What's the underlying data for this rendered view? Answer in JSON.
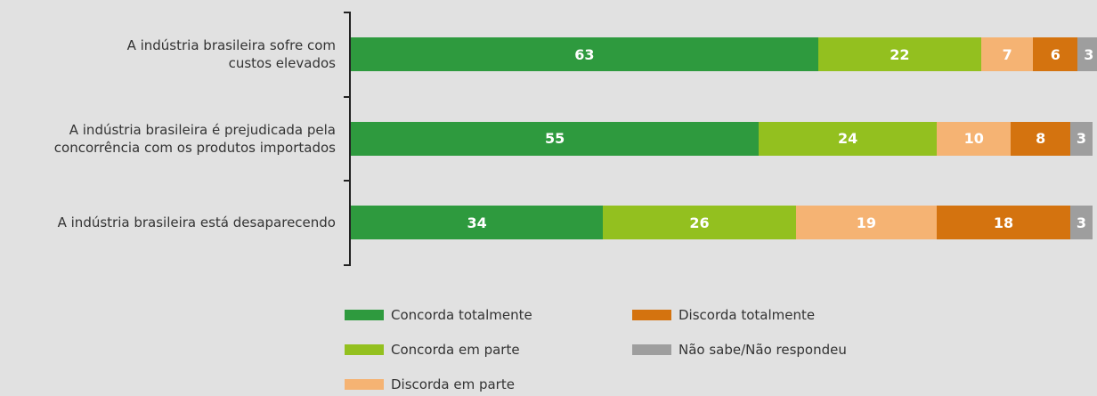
{
  "chart_data": {
    "type": "stacked-barh",
    "categories": [
      "A indústria brasileira sofre com\ncustos elevados",
      "A indústria brasileira é prejudicada pela\nconcorrência com os produtos importados",
      "A indústria brasileira está desaparecendo"
    ],
    "xlim": [
      0,
      100
    ],
    "series": [
      {
        "name": "Concorda totalmente",
        "color": "#2e9a3e",
        "values": [
          63,
          55,
          34
        ]
      },
      {
        "name": "Concorda em parte",
        "color": "#93c01f",
        "values": [
          22,
          24,
          26
        ]
      },
      {
        "name": "Discorda em parte",
        "color": "#f5b373",
        "values": [
          7,
          10,
          19
        ]
      },
      {
        "name": "Discorda totalmente",
        "color": "#d4730f",
        "values": [
          6,
          8,
          18
        ]
      },
      {
        "name": "Não sabe/Não respondeu",
        "color": "#9e9e9e",
        "values": [
          3,
          3,
          3
        ]
      }
    ]
  }
}
